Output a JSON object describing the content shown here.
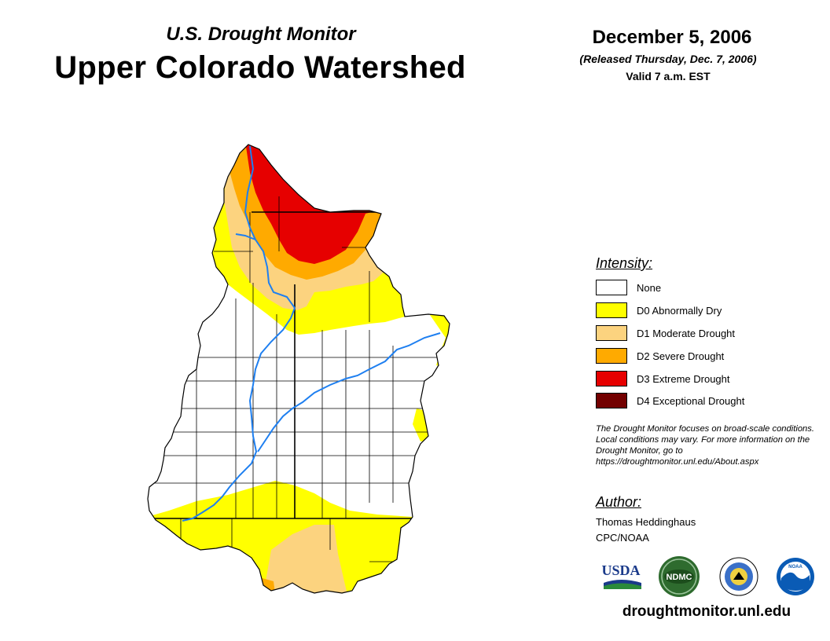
{
  "header": {
    "subtitle": "U.S. Drought Monitor",
    "title": "Upper Colorado Watershed",
    "date": "December 5, 2006",
    "released": "(Released Thursday, Dec. 7, 2006)",
    "valid": "Valid 7 a.m. EST"
  },
  "legend": {
    "heading": "Intensity:",
    "items": [
      {
        "label": "None",
        "color": "#ffffff"
      },
      {
        "label": "D0 Abnormally Dry",
        "color": "#ffff00"
      },
      {
        "label": "D1 Moderate Drought",
        "color": "#fcd37f"
      },
      {
        "label": "D2 Severe Drought",
        "color": "#ffaa00"
      },
      {
        "label": "D3 Extreme Drought",
        "color": "#e60000"
      },
      {
        "label": "D4 Exceptional Drought",
        "color": "#730000"
      }
    ]
  },
  "note": "The Drought Monitor focuses on broad-scale conditions. Local conditions may vary. For more information on the Drought Monitor, go to https://droughtmonitor.unl.edu/About.aspx",
  "author": {
    "heading": "Author:",
    "name": "Thomas Heddinghaus",
    "org": "CPC/NOAA"
  },
  "logos": {
    "usda": "USDA",
    "ndmc": "NDMC",
    "noaa": "NOAA"
  },
  "footer": {
    "url": "droughtmonitor.unl.edu"
  }
}
